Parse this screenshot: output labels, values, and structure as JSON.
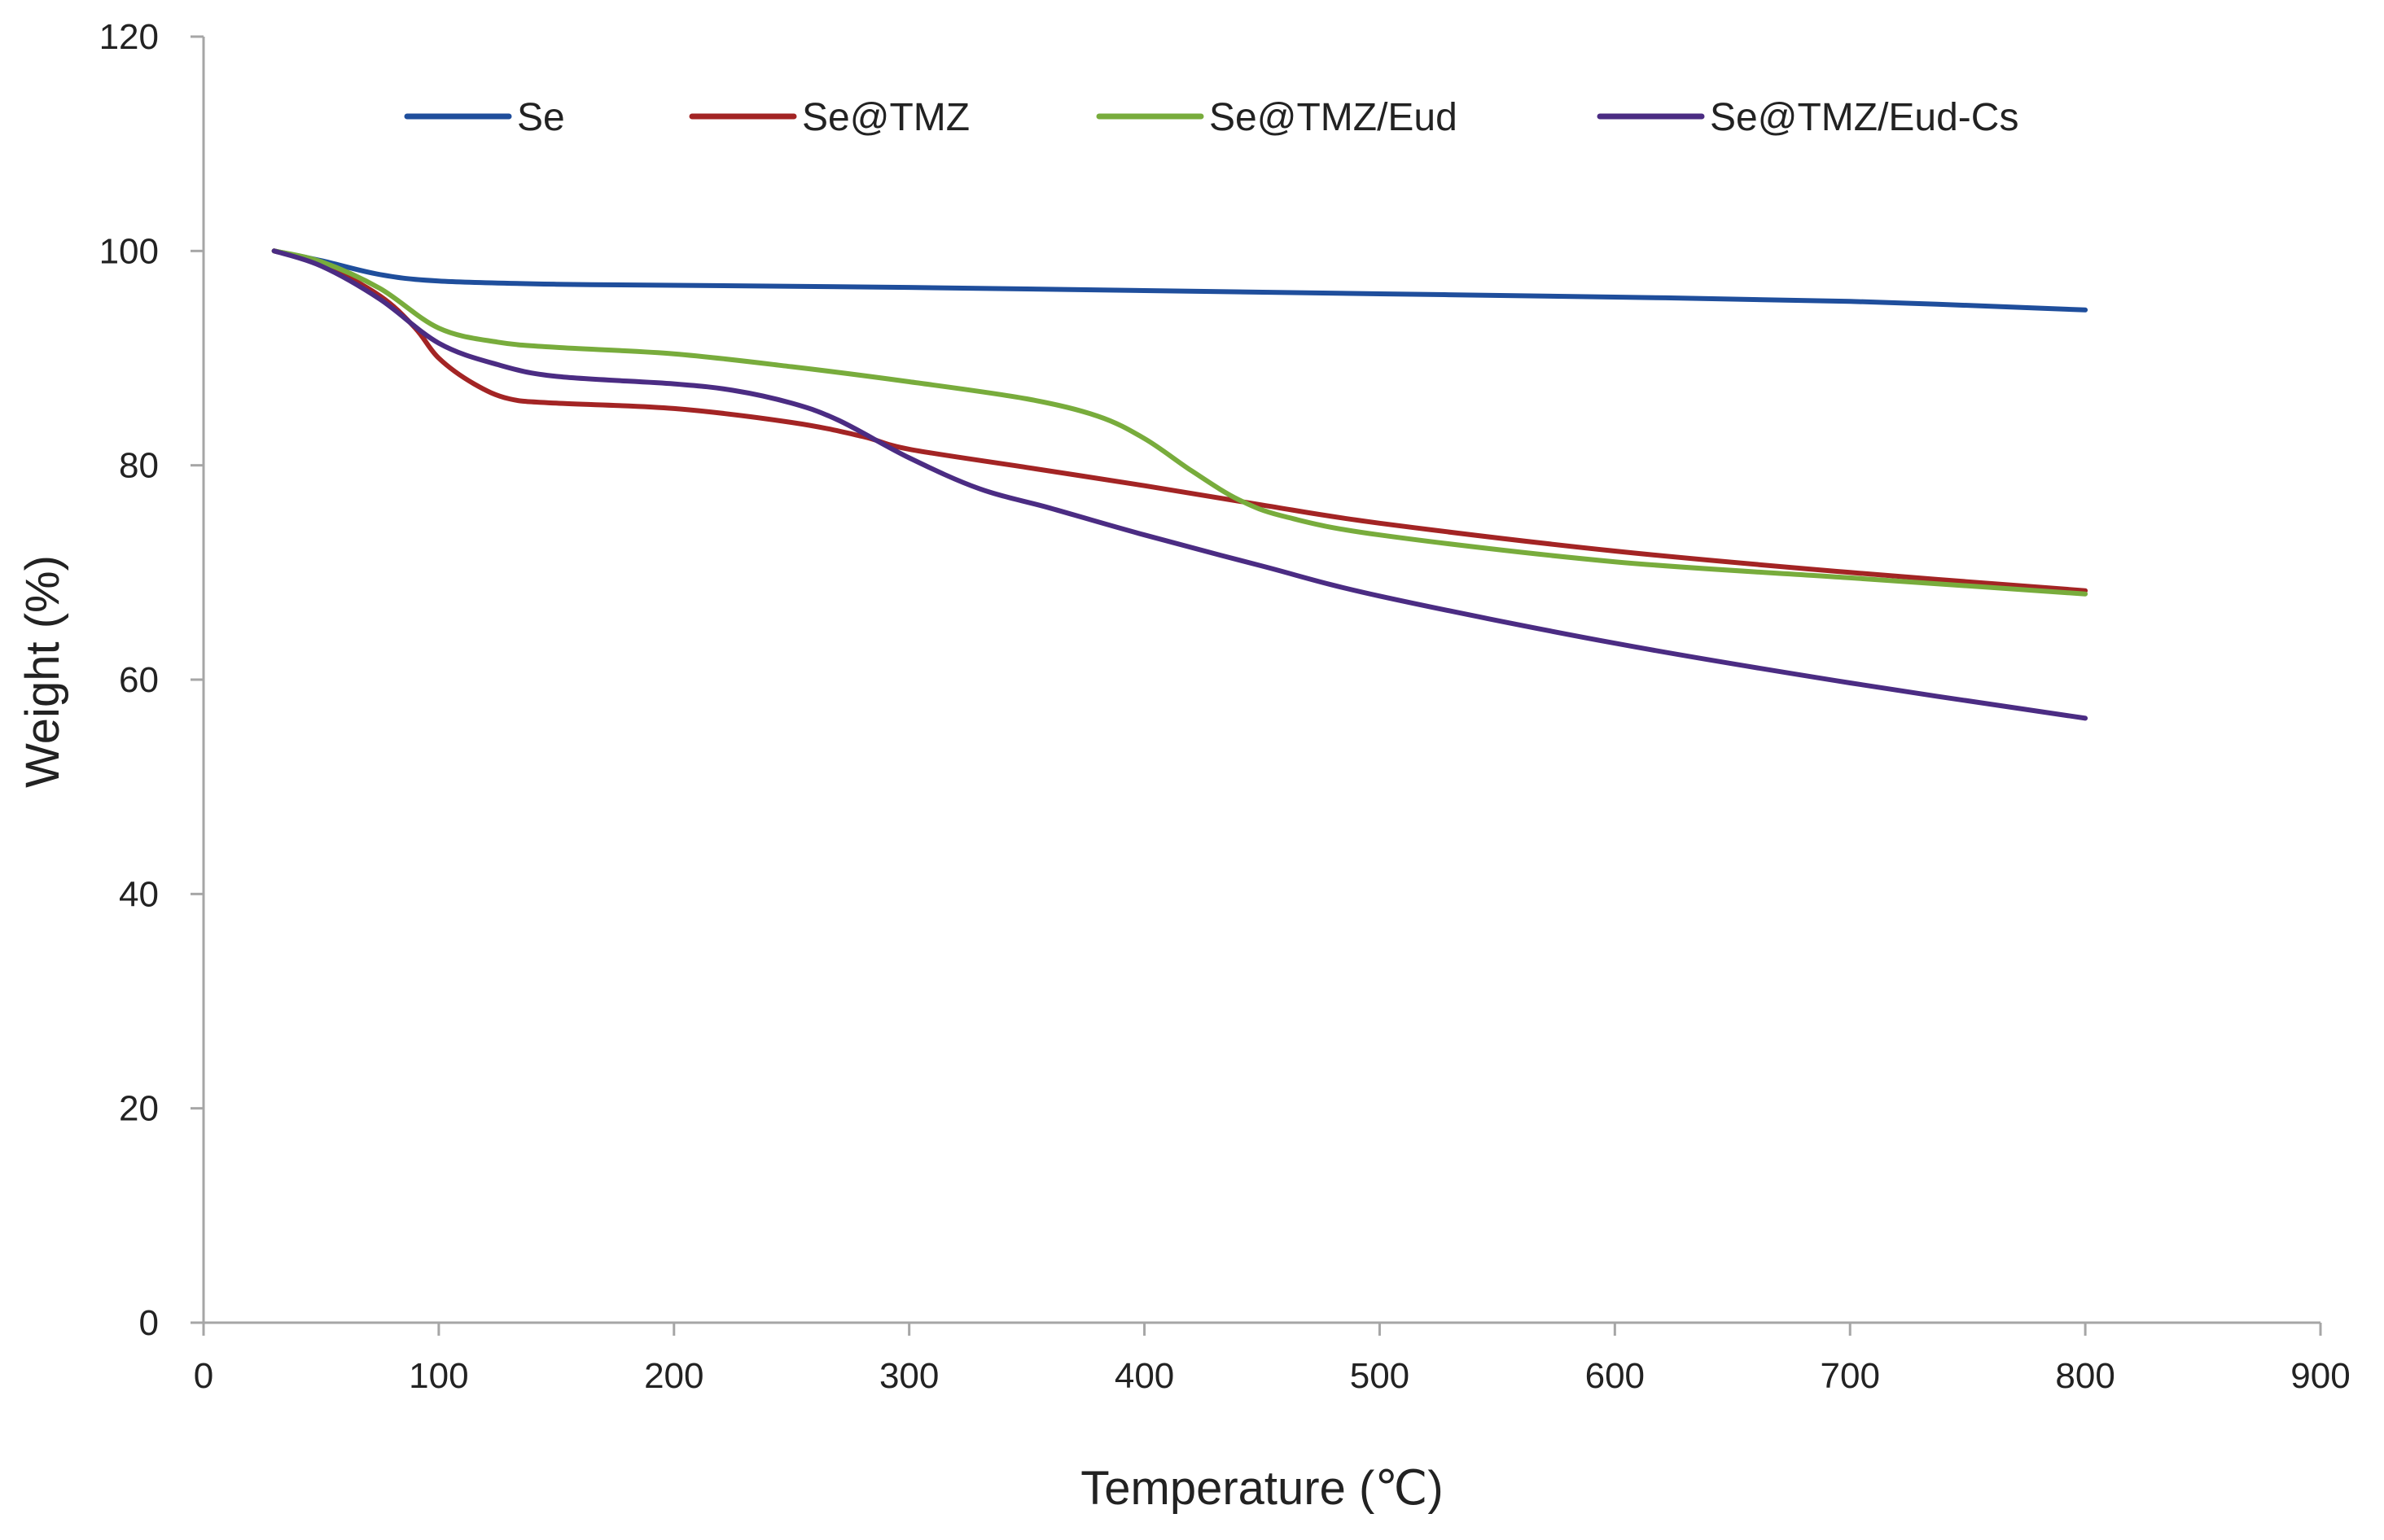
{
  "chart_data": {
    "type": "line",
    "title": "",
    "xlabel": "Temperature (℃)",
    "ylabel": "Weight (%)",
    "xlim": [
      0,
      900
    ],
    "ylim": [
      0,
      120
    ],
    "xticks": [
      0,
      100,
      200,
      300,
      400,
      500,
      600,
      700,
      800,
      900
    ],
    "yticks": [
      0,
      20,
      40,
      60,
      80,
      100,
      120
    ],
    "grid": false,
    "legend_position": "top",
    "series": [
      {
        "name": "Se",
        "color": "#1f4e9c",
        "x": [
          30,
          50,
          75,
          100,
          150,
          200,
          300,
          400,
          500,
          600,
          700,
          800
        ],
        "y": [
          100,
          99.1,
          97.8,
          97.2,
          96.9,
          96.8,
          96.6,
          96.3,
          96.0,
          95.7,
          95.3,
          94.5
        ]
      },
      {
        "name": "Se@TMZ",
        "color": "#a32424",
        "x": [
          30,
          50,
          75,
          90,
          100,
          115,
          130,
          150,
          200,
          250,
          280,
          300,
          350,
          400,
          450,
          500,
          600,
          700,
          800
        ],
        "y": [
          100,
          98.8,
          95.8,
          92.8,
          90.0,
          87.6,
          86.2,
          85.8,
          85.3,
          84.0,
          82.7,
          81.5,
          79.8,
          78.1,
          76.3,
          74.6,
          72.0,
          70.0,
          68.3
        ]
      },
      {
        "name": "Se@TMZ/Eud",
        "color": "#78ac3c",
        "x": [
          30,
          50,
          75,
          100,
          125,
          150,
          200,
          250,
          300,
          350,
          380,
          400,
          420,
          440,
          460,
          500,
          600,
          700,
          800
        ],
        "y": [
          100,
          99.0,
          96.5,
          92.8,
          91.5,
          91.0,
          90.4,
          89.2,
          87.8,
          86.2,
          84.6,
          82.5,
          79.5,
          76.8,
          75.2,
          73.5,
          71.0,
          69.5,
          68.0
        ]
      },
      {
        "name": "Se@TMZ/Eud-Cs",
        "color": "#4b2c83",
        "x": [
          30,
          50,
          75,
          100,
          125,
          150,
          200,
          225,
          250,
          270,
          300,
          330,
          360,
          400,
          450,
          500,
          600,
          700,
          800
        ],
        "y": [
          100,
          98.6,
          95.5,
          91.4,
          89.4,
          88.3,
          87.6,
          87.0,
          85.8,
          84.2,
          80.7,
          77.8,
          76.0,
          73.5,
          70.6,
          67.8,
          63.4,
          59.7,
          56.4
        ]
      }
    ]
  }
}
